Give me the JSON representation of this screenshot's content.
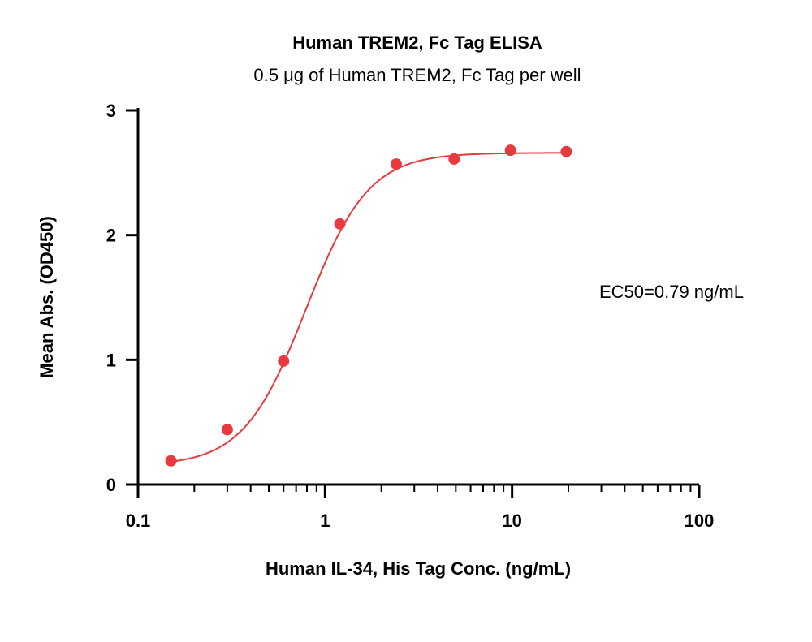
{
  "chart_data": {
    "type": "scatter",
    "title": "Human TREM2, Fc Tag ELISA",
    "subtitle": "0.5 μg of Human TREM2, Fc Tag per well",
    "xlabel": "Human IL-34, His Tag Conc. (ng/mL)",
    "ylabel": "Mean Abs. (OD450)",
    "x_scale": "log",
    "xlim": [
      0.1,
      100
    ],
    "ylim": [
      0,
      3
    ],
    "x_ticks": [
      0.1,
      1,
      10,
      100
    ],
    "x_tick_labels": [
      "0.1",
      "1",
      "10",
      "100"
    ],
    "y_ticks": [
      0,
      1,
      2,
      3
    ],
    "y_tick_labels": [
      "0",
      "1",
      "2",
      "3"
    ],
    "grid": false,
    "legend": "none",
    "annotation": "EC50=0.79 ng/mL",
    "color": "#e8393f",
    "series": [
      {
        "x": [
          0.15,
          0.3,
          0.6,
          1.2,
          2.4,
          4.9,
          9.8,
          19.5
        ],
        "y": [
          0.19,
          0.44,
          0.99,
          2.09,
          2.57,
          2.61,
          2.68,
          2.67
        ]
      }
    ],
    "fit": {
      "model": "4PL",
      "bottom": 0.15,
      "top": 2.66,
      "ec50": 0.79,
      "hill": 2.6,
      "x_range": [
        0.15,
        19.5
      ]
    }
  }
}
